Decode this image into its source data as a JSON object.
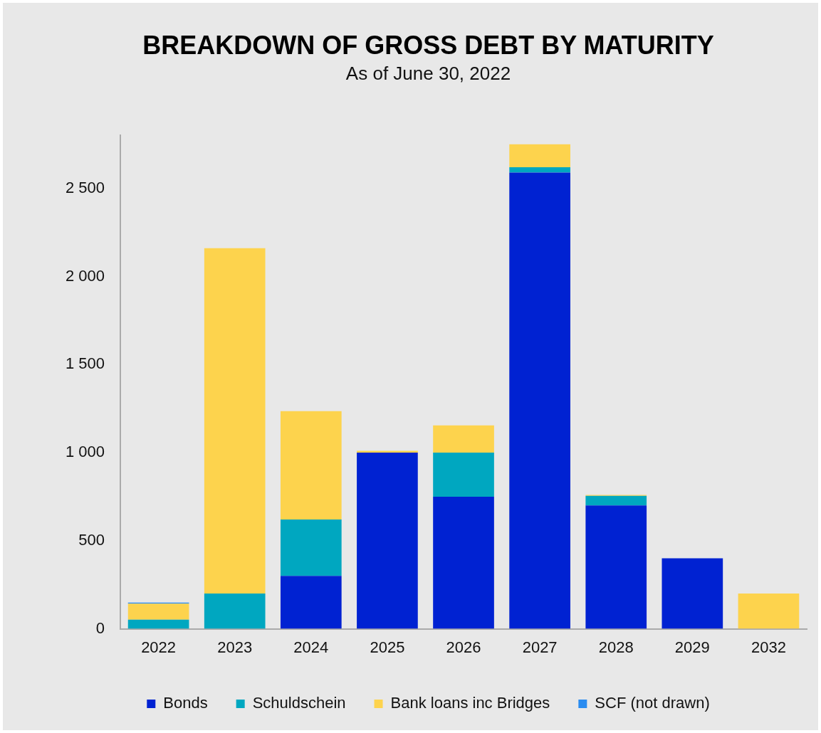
{
  "chart_data": {
    "type": "bar",
    "title": "BREAKDOWN OF GROSS DEBT BY MATURITY",
    "subtitle": "As of June 30, 2022",
    "categories": [
      "2022",
      "2023",
      "2024",
      "2025",
      "2026",
      "2027",
      "2028",
      "2029",
      "2032"
    ],
    "series": [
      {
        "name": "Bonds",
        "color": "#0022d2",
        "values": [
          0,
          0,
          300,
          1000,
          750,
          2590,
          700,
          400,
          0
        ]
      },
      {
        "name": "Schuldschein",
        "color": "#00a7c0",
        "values": [
          52,
          200,
          320,
          0,
          250,
          30,
          55,
          0,
          0
        ]
      },
      {
        "name": "Bank loans inc Bridges",
        "color": "#fdd34d",
        "values": [
          91,
          1960,
          615,
          10,
          155,
          130,
          5,
          0,
          200
        ]
      },
      {
        "name": "SCF (not drawn)",
        "color": "#2a8cf0",
        "values": [
          6,
          0,
          0,
          0,
          0,
          0,
          0,
          0,
          0
        ]
      }
    ],
    "stacked": true,
    "ylim": [
      0,
      2800
    ],
    "yticks": [
      {
        "value": 0,
        "label": "0"
      },
      {
        "value": 500,
        "label": "500"
      },
      {
        "value": 1000,
        "label": "1 000"
      },
      {
        "value": 1500,
        "label": "1 500"
      },
      {
        "value": 2000,
        "label": "2 000"
      },
      {
        "value": 2500,
        "label": "2 500"
      }
    ],
    "grid": false,
    "legend": "bottom"
  }
}
